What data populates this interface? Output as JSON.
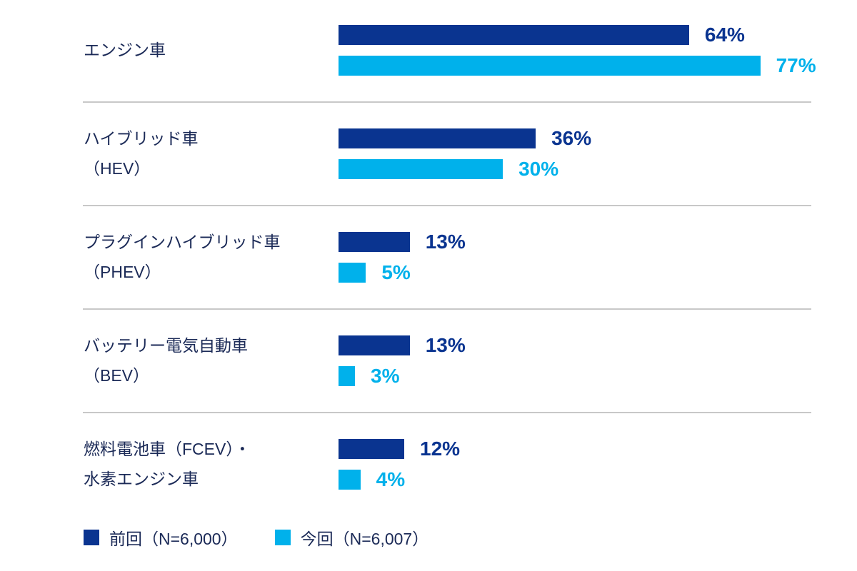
{
  "chart_data": {
    "type": "bar",
    "orientation": "horizontal",
    "categories": [
      [
        "エンジン車"
      ],
      [
        "ハイブリッド車",
        "（HEV）"
      ],
      [
        "プラグインハイブリッド車",
        "（PHEV）"
      ],
      [
        "バッテリー電気自動車",
        "（BEV）"
      ],
      [
        "燃料電池車（FCEV）・",
        "水素エンジン車"
      ]
    ],
    "series": [
      {
        "name": "前回（N=6,000）",
        "color": "#0a3490",
        "values": [
          64,
          36,
          13,
          13,
          12
        ]
      },
      {
        "name": "今回（N=6,007）",
        "color": "#00b1eb",
        "values": [
          77,
          30,
          5,
          3,
          4
        ]
      }
    ],
    "unit": "%",
    "xlim": [
      0,
      100
    ],
    "grid": false,
    "legend_position": "bottom-left"
  }
}
